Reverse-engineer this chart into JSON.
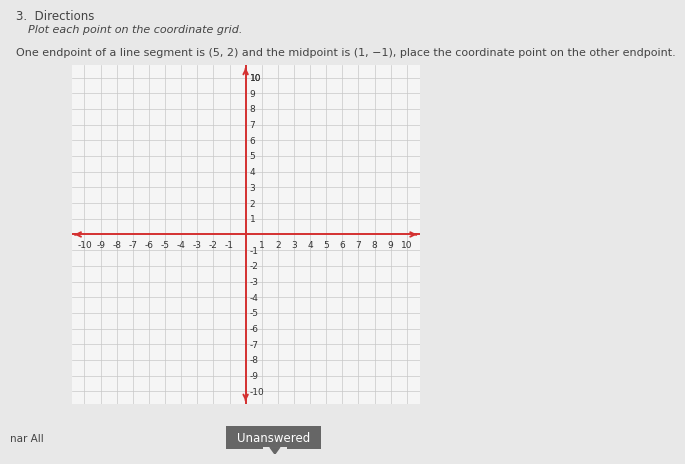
{
  "title_number": "3.  Directions",
  "subtitle1": "Plot each point on the coordinate grid.",
  "subtitle2": "One endpoint of a line segment is (5, 2) and the midpoint is (1, −1), place the coordinate point on the other endpoint.",
  "xlim": [
    -10.8,
    10.8
  ],
  "ylim": [
    -10.8,
    10.8
  ],
  "xtick_labels_neg": [
    -10,
    -9,
    -8,
    -7,
    -6,
    -5,
    -4,
    -3,
    -2,
    -1
  ],
  "xtick_labels_pos": [
    1,
    2,
    3,
    4,
    5,
    6,
    7,
    8,
    9,
    10
  ],
  "ytick_labels_neg": [
    -1,
    -2,
    -3,
    -4,
    -5,
    -6,
    -7,
    -8,
    -9,
    -10
  ],
  "ytick_labels_pos": [
    1,
    2,
    3,
    4,
    5,
    6,
    7,
    8,
    9,
    10
  ],
  "grid_color": "#c8c8c8",
  "axis_color": "#d43030",
  "page_background": "#e8e8e8",
  "plot_background": "#f5f5f5",
  "tick_fontsize": 6.5,
  "text_color": "#333333",
  "title_color": "#444444",
  "button_bg": "#666666",
  "button_text": "Unanswered",
  "save_all_text": "nar All"
}
